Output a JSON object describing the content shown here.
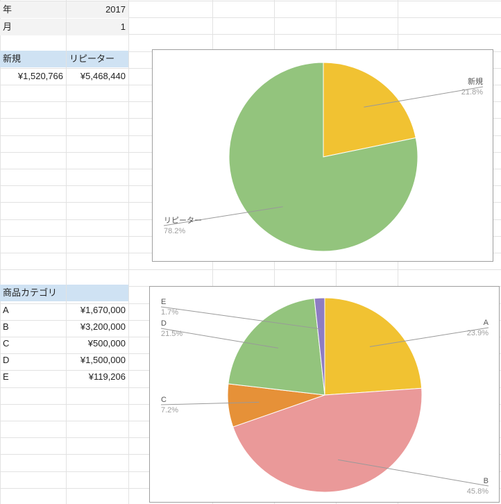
{
  "sheet": {
    "year_label": "年",
    "year_value": "2017",
    "month_label": "月",
    "month_value": "1",
    "customer_headers": [
      "新規",
      "リピーター"
    ],
    "customer_values": [
      "¥1,520,766",
      "¥5,468,440"
    ],
    "category_header": "商品カテゴリ",
    "categories": [
      {
        "name": "A",
        "value": "¥1,670,000"
      },
      {
        "name": "B",
        "value": "¥3,200,000"
      },
      {
        "name": "C",
        "value": "¥500,000"
      },
      {
        "name": "D",
        "value": "¥1,500,000"
      },
      {
        "name": "E",
        "value": "¥119,206"
      }
    ]
  },
  "chart_data": [
    {
      "type": "pie",
      "title": "",
      "slices": [
        {
          "label": "新規",
          "value": 1520766,
          "percent_label": "21.8%",
          "color": "#f1c232"
        },
        {
          "label": "リピーター",
          "value": 5468440,
          "percent_label": "78.2%",
          "color": "#93c47d"
        }
      ]
    },
    {
      "type": "pie",
      "title": "",
      "slices": [
        {
          "label": "A",
          "value": 1670000,
          "percent_label": "23.9%",
          "color": "#f1c232"
        },
        {
          "label": "B",
          "value": 3200000,
          "percent_label": "45.8%",
          "color": "#ea9999"
        },
        {
          "label": "C",
          "value": 500000,
          "percent_label": "7.2%",
          "color": "#e69138"
        },
        {
          "label": "D",
          "value": 1500000,
          "percent_label": "21.5%",
          "color": "#93c47d"
        },
        {
          "label": "E",
          "value": 119206,
          "percent_label": "1.7%",
          "color": "#8e7cc3"
        }
      ]
    }
  ]
}
